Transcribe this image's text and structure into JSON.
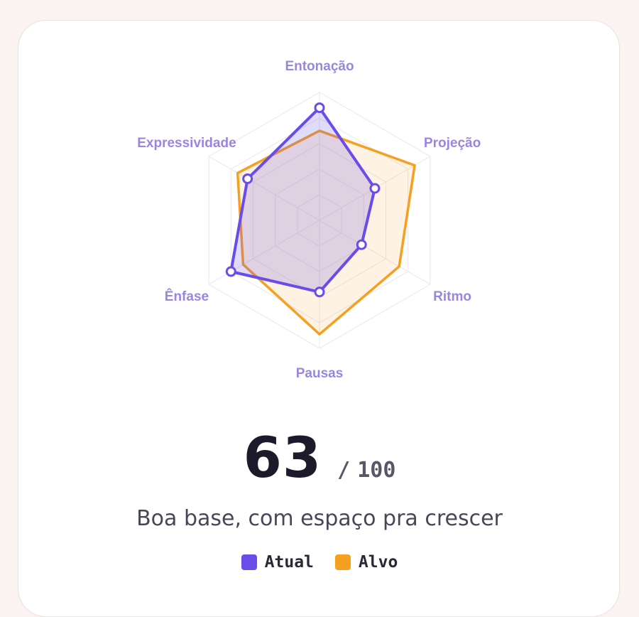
{
  "chart_data": {
    "type": "radar",
    "categories": [
      "Entonação",
      "Projeção",
      "Ritmo",
      "Pausas",
      "Ênfase",
      "Expressividade"
    ],
    "series": [
      {
        "name": "Atual",
        "color": "#6a4de8",
        "values": [
          88,
          50,
          38,
          56,
          80,
          65
        ]
      },
      {
        "name": "Alvo",
        "color": "#f5a020",
        "values": [
          70,
          86,
          72,
          89,
          69,
          74
        ]
      }
    ],
    "rlim": [
      0,
      100
    ],
    "rticks": [
      20,
      40,
      60,
      80,
      100
    ],
    "grid": true,
    "score": 63,
    "score_separator": "/",
    "score_max": 100,
    "subtitle": "Boa base, com espaço pra crescer"
  }
}
